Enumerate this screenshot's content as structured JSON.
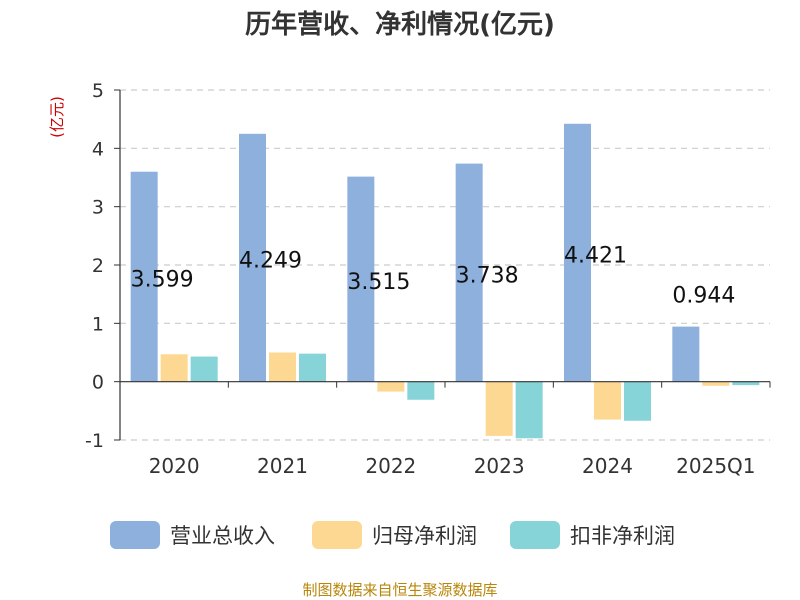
{
  "chart_data": {
    "type": "bar",
    "title": "历年营收、净利情况(亿元)",
    "ylabel": "(亿元)",
    "categories": [
      "2020",
      "2021",
      "2022",
      "2023",
      "2024",
      "2025Q1"
    ],
    "ylim": [
      -1,
      5
    ],
    "yticks": [
      "5",
      "4",
      "3",
      "2",
      "1",
      "0",
      "-1"
    ],
    "grid": true,
    "legend_position": "bottom",
    "series": [
      {
        "name": "营业总收入",
        "color": "#8eb0dc",
        "values": [
          3.599,
          4.249,
          3.515,
          3.738,
          4.421,
          0.944
        ],
        "labels": [
          "3.599",
          "4.249",
          "3.515",
          "3.738",
          "4.421",
          "0.944"
        ]
      },
      {
        "name": "归母净利润",
        "color": "#fdd893",
        "values": [
          0.47,
          0.5,
          -0.17,
          -0.93,
          -0.65,
          -0.07
        ]
      },
      {
        "name": "扣非净利润",
        "color": "#86d3d8",
        "values": [
          0.43,
          0.48,
          -0.31,
          -0.97,
          -0.67,
          -0.06
        ]
      }
    ]
  },
  "footer": {
    "source": "制图数据来自恒生聚源数据库"
  }
}
